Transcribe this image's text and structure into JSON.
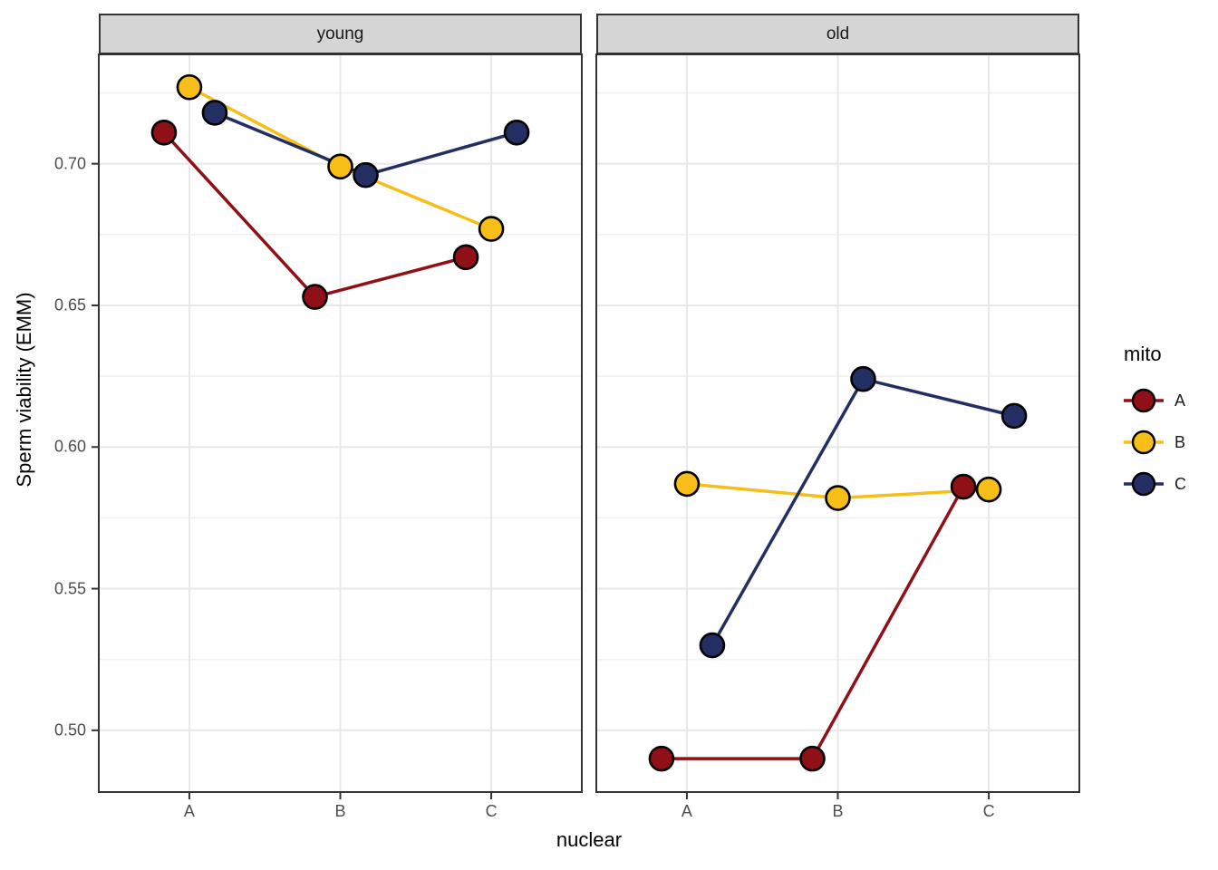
{
  "chart_data": {
    "type": "line",
    "xlabel": "nuclear",
    "ylabel": "Sperm viability (EMM)",
    "categories": [
      "A",
      "B",
      "C"
    ],
    "y_tick_labels": [
      "0.70",
      "0.65",
      "0.60",
      "0.55",
      "0.50"
    ],
    "y_tick_values": [
      0.7,
      0.65,
      0.6,
      0.55,
      0.5
    ],
    "y_minor_values": [
      0.725,
      0.675,
      0.625,
      0.575,
      0.525
    ],
    "ylim": [
      0.4782,
      0.7386
    ],
    "grid": "major-and-minor",
    "legend_position": "right",
    "facets": [
      {
        "label": "young",
        "series": [
          {
            "name": "A",
            "values": [
              0.711,
              0.653,
              0.667
            ]
          },
          {
            "name": "B",
            "values": [
              0.727,
              0.699,
              0.677
            ]
          },
          {
            "name": "C",
            "values": [
              0.718,
              0.696,
              0.711
            ]
          }
        ]
      },
      {
        "label": "old",
        "series": [
          {
            "name": "A",
            "values": [
              0.49,
              0.49,
              0.586
            ]
          },
          {
            "name": "B",
            "values": [
              0.587,
              0.582,
              0.585
            ]
          },
          {
            "name": "C",
            "values": [
              0.53,
              0.624,
              0.611
            ]
          }
        ]
      }
    ],
    "legend": {
      "title": "mito",
      "entries": [
        {
          "label": "A",
          "color": "#8F1016"
        },
        {
          "label": "B",
          "color": "#F6BE16"
        },
        {
          "label": "C",
          "color": "#232F62"
        }
      ]
    },
    "colors": {
      "series_A": "#8F1016",
      "series_B": "#F6BE16",
      "series_C": "#232F62",
      "strip_background": "#D5D5D5",
      "panel_border": "#333333",
      "grid_major": "#E8E8E8",
      "grid_minor": "#F1F1F1",
      "axis_text": "#4D4D4D"
    }
  }
}
